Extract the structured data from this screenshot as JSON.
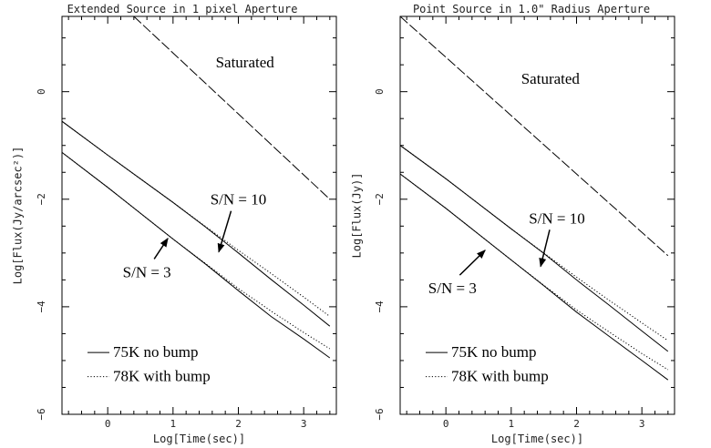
{
  "chart_data": [
    {
      "type": "line",
      "title": "Extended Source in 1 pixel Aperture",
      "xlabel": "Log[Time(sec)]",
      "ylabel": "Log[Flux(Jy/arcsec²)]",
      "xlim": [
        -0.7,
        3.5
      ],
      "ylim": [
        -6,
        1.4
      ],
      "xticks": [
        0,
        1,
        2,
        3
      ],
      "yticks": [
        0,
        -2,
        -4,
        -6
      ],
      "series": [
        {
          "name": "",
          "style": "dashed",
          "x": [
            0.4,
            3.4
          ],
          "y": [
            1.4,
            -2.0
          ]
        },
        {
          "name": "75K no bump",
          "style": "solid",
          "x": [
            -0.7,
            0,
            1,
            1.5,
            2,
            2.5,
            3,
            3.4
          ],
          "y": [
            -0.55,
            -1.18,
            -2.06,
            -2.52,
            -3.0,
            -3.49,
            -3.97,
            -4.36
          ]
        },
        {
          "name": "78K with bump",
          "style": "dotted",
          "x": [
            -0.7,
            0,
            1,
            1.5,
            2,
            2.5,
            3,
            3.4
          ],
          "y": [
            -0.55,
            -1.18,
            -2.06,
            -2.51,
            -2.95,
            -3.38,
            -3.82,
            -4.18
          ]
        },
        {
          "name": "75K no bump",
          "style": "solid",
          "x": [
            -0.7,
            0,
            1,
            1.5,
            2,
            2.5,
            3,
            3.4
          ],
          "y": [
            -1.13,
            -1.78,
            -2.74,
            -3.21,
            -3.7,
            -4.18,
            -4.6,
            -4.95
          ]
        },
        {
          "name": "78K with bump",
          "style": "dotted",
          "x": [
            -0.7,
            0,
            1,
            1.5,
            2,
            2.5,
            3,
            3.4
          ],
          "y": [
            -1.13,
            -1.78,
            -2.74,
            -3.2,
            -3.66,
            -4.08,
            -4.48,
            -4.78
          ]
        }
      ],
      "annotations": [
        {
          "text": "Saturated",
          "x": 2.1,
          "y": 0.45
        },
        {
          "text": "S/N = 10",
          "x": 2.0,
          "y": -2.1,
          "arrow_to": [
            1.7,
            -2.98
          ]
        },
        {
          "text": "S/N = 3",
          "x": 0.6,
          "y": -3.45,
          "arrow_to": [
            0.92,
            -2.73
          ]
        }
      ],
      "legend": {
        "placement": "bottom-left",
        "entries": [
          {
            "label": "75K no bump",
            "style": "solid"
          },
          {
            "label": "78K with bump",
            "style": "dotted"
          }
        ]
      }
    },
    {
      "type": "line",
      "title": "Point Source in 1.0\" Radius Aperture",
      "xlabel": "Log[Time(sec)]",
      "ylabel": "Log[Flux(Jy)]",
      "xlim": [
        -0.7,
        3.5
      ],
      "ylim": [
        -6,
        1.4
      ],
      "xticks": [
        0,
        1,
        2,
        3
      ],
      "yticks": [
        0,
        -2,
        -4,
        -6
      ],
      "series": [
        {
          "name": "",
          "style": "dashed",
          "x": [
            -0.7,
            3.4
          ],
          "y": [
            1.4,
            -3.05
          ]
        },
        {
          "name": "75K no bump",
          "style": "solid",
          "x": [
            -0.7,
            0,
            1,
            1.5,
            2,
            2.5,
            3,
            3.4
          ],
          "y": [
            -1.0,
            -1.62,
            -2.55,
            -3.01,
            -3.5,
            -3.97,
            -4.45,
            -4.83
          ]
        },
        {
          "name": "78K with bump",
          "style": "dotted",
          "x": [
            -0.7,
            0,
            1,
            1.5,
            2,
            2.5,
            3,
            3.4
          ],
          "y": [
            -1.0,
            -1.62,
            -2.55,
            -3.0,
            -3.45,
            -3.88,
            -4.3,
            -4.63
          ]
        },
        {
          "name": "75K no bump",
          "style": "solid",
          "x": [
            -0.7,
            0,
            1,
            1.5,
            2,
            2.5,
            3,
            3.4
          ],
          "y": [
            -1.53,
            -2.17,
            -3.13,
            -3.61,
            -4.1,
            -4.55,
            -5.0,
            -5.36
          ]
        },
        {
          "name": "78K with bump",
          "style": "dotted",
          "x": [
            -0.7,
            0,
            1,
            1.5,
            2,
            2.5,
            3,
            3.4
          ],
          "y": [
            -1.53,
            -2.17,
            -3.13,
            -3.6,
            -4.06,
            -4.47,
            -4.87,
            -5.17
          ]
        }
      ],
      "annotations": [
        {
          "text": "Saturated",
          "x": 1.6,
          "y": 0.15
        },
        {
          "text": "S/N = 10",
          "x": 1.7,
          "y": -2.45,
          "arrow_to": [
            1.45,
            -3.25
          ]
        },
        {
          "text": "S/N = 3",
          "x": 0.1,
          "y": -3.75,
          "arrow_to": [
            0.6,
            -2.95
          ]
        }
      ],
      "legend": {
        "placement": "bottom-left",
        "entries": [
          {
            "label": "75K no bump",
            "style": "solid"
          },
          {
            "label": "78K with bump",
            "style": "dotted"
          }
        ]
      }
    }
  ]
}
